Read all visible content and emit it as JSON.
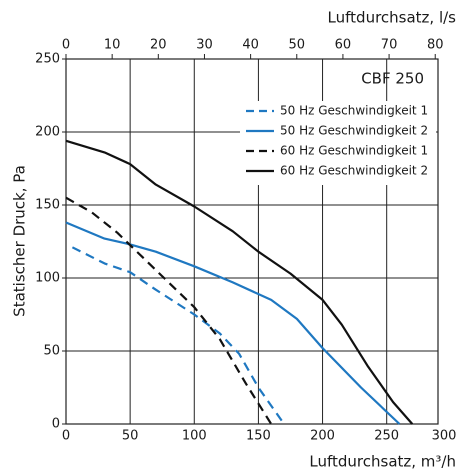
{
  "chart_data": {
    "type": "line",
    "annotation": "CBF 250",
    "x_label": "Luftdurchsatz, m³/h",
    "x2_label": "Luftdurchsatz, l/s",
    "y_label": "Statischer Druck, Pa",
    "xlim": [
      0,
      290
    ],
    "xticks": [
      0,
      50,
      100,
      150,
      200,
      250,
      300
    ],
    "x2lim": [
      0,
      80.6
    ],
    "x2ticks": [
      0,
      10,
      20,
      30,
      40,
      50,
      60,
      70,
      80
    ],
    "ylim": [
      0,
      250
    ],
    "yticks": [
      0,
      50,
      100,
      150,
      200,
      250
    ],
    "grid": true,
    "legend": "upper right",
    "series": [
      {
        "name": "50 Hz Geschwindigkeit 1",
        "color": "#1f78c1",
        "dashed": true,
        "x": [
          5,
          30,
          50,
          70,
          100,
          120,
          135,
          150,
          170
        ],
        "values": [
          121,
          110,
          104,
          92,
          75,
          62,
          48,
          25,
          0
        ]
      },
      {
        "name": "50 Hz Geschwindigkeit 2",
        "color": "#1f78c1",
        "dashed": false,
        "x": [
          0,
          30,
          50,
          70,
          100,
          130,
          160,
          180,
          200,
          230,
          260
        ],
        "values": [
          138,
          127,
          123,
          118,
          108,
          97,
          85,
          72,
          52,
          25,
          0
        ]
      },
      {
        "name": "60 Hz Geschwindigkeit 1",
        "color": "#111111",
        "dashed": true,
        "x": [
          0,
          20,
          40,
          60,
          80,
          100,
          120,
          140,
          160
        ],
        "values": [
          155,
          145,
          131,
          114,
          97,
          80,
          58,
          28,
          0
        ]
      },
      {
        "name": "60 Hz Geschwindigkeit 2",
        "color": "#111111",
        "dashed": false,
        "x": [
          0,
          30,
          50,
          70,
          100,
          130,
          150,
          175,
          200,
          215,
          235,
          255,
          270
        ],
        "values": [
          194,
          186,
          178,
          164,
          149,
          132,
          118,
          103,
          85,
          68,
          40,
          15,
          0
        ]
      }
    ]
  }
}
